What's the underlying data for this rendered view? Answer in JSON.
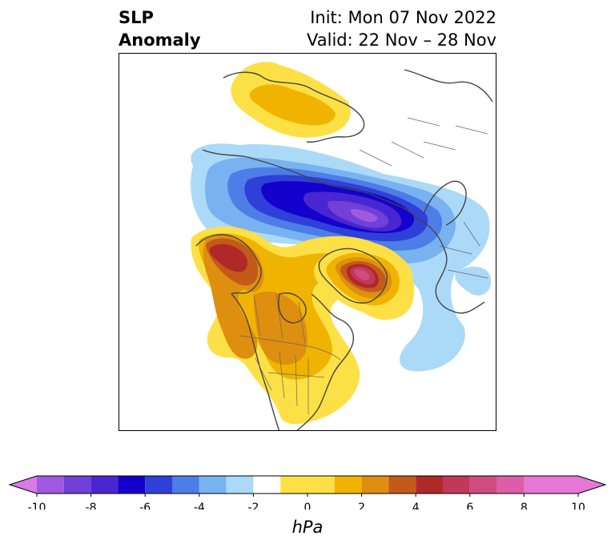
{
  "title": {
    "variable_line1": "SLP",
    "variable_line2": "Anomaly",
    "init": "Init: Mon 07 Nov 2022",
    "valid": "Valid: 22 Nov – 28 Nov"
  },
  "colorbar": {
    "unit": "hPa",
    "min": -10,
    "max": 10,
    "extend": "both",
    "tick_values": [
      -10,
      -8,
      -6,
      -4,
      -2,
      0,
      2,
      4,
      6,
      8,
      10
    ],
    "tick_labels": [
      "-10",
      "-8",
      "-6",
      "-4",
      "-2",
      "0",
      "2",
      "4",
      "6",
      "8",
      "10"
    ],
    "levels": [
      -11,
      -10,
      -9,
      -8,
      -7,
      -6,
      -5,
      -4,
      -3,
      -2,
      -1,
      1,
      2,
      3,
      4,
      5,
      6,
      7,
      8,
      9,
      10,
      11
    ],
    "colors": [
      "#d77be6",
      "#a05ae0",
      "#7040d8",
      "#4a26d2",
      "#1400cc",
      "#2e40d8",
      "#4d7de6",
      "#79b2f0",
      "#abd9f8",
      "#ffffff",
      "#fde045",
      "#f0b400",
      "#de8f10",
      "#c45a1a",
      "#b02828",
      "#c23858",
      "#ce4c80",
      "#dc5ea8",
      "#e577d6"
    ]
  },
  "map": {
    "projection": "north polar stereographic",
    "region": "Northern Hemisphere / North America",
    "features": [
      {
        "name": "negative-anomaly-arctic",
        "sign": "negative",
        "min_value_hPa": -9
      },
      {
        "name": "positive-anomaly-alaska",
        "sign": "positive",
        "max_value_hPa": 6
      },
      {
        "name": "positive-anomaly-greenland",
        "sign": "positive",
        "max_value_hPa": 8
      },
      {
        "name": "positive-anomaly-siberia",
        "sign": "positive",
        "max_value_hPa": 3
      },
      {
        "name": "negative-anomaly-atlantic",
        "sign": "negative",
        "min_value_hPa": -1
      }
    ],
    "colors": {
      "coastline": "#444444",
      "frame": "#000000"
    }
  }
}
